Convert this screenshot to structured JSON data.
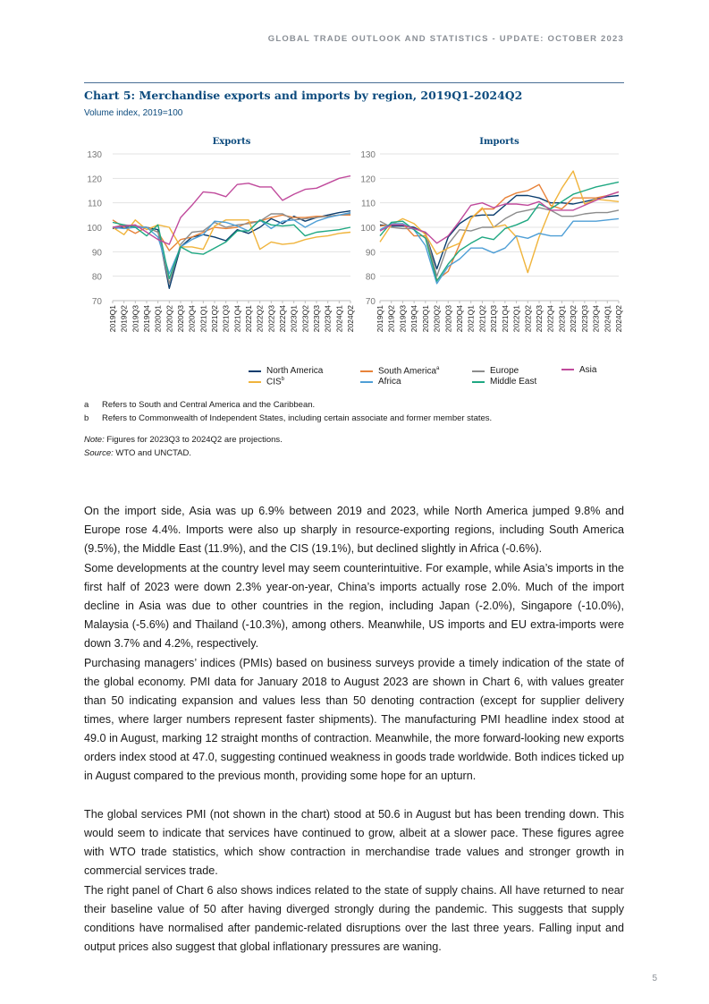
{
  "header": "GLOBAL TRADE OUTLOOK AND STATISTICS - UPDATE: OCTOBER 2023",
  "chart_title": "Chart 5: Merchandise exports and imports by region, 2019Q1-2024Q2",
  "chart_subtitle": "Volume index, 2019=100",
  "chart_data": [
    {
      "type": "line",
      "title": "Exports",
      "ylim": [
        70,
        130
      ],
      "yticks": [
        70,
        80,
        90,
        100,
        110,
        120,
        130
      ],
      "grid": true,
      "x": [
        "2019Q1",
        "2019Q2",
        "2019Q3",
        "2019Q4",
        "2020Q1",
        "2020Q2",
        "2020Q3",
        "2020Q4",
        "2021Q1",
        "2021Q2",
        "2021Q3",
        "2021Q4",
        "2022Q1",
        "2022Q2",
        "2022Q3",
        "2022Q4",
        "2023Q1",
        "2023Q2",
        "2023Q3",
        "2023Q4",
        "2024Q1",
        "2024Q2"
      ],
      "series": [
        {
          "name": "North America",
          "color": "#0b3d6e",
          "values": [
            99.5,
            100,
            100,
            100,
            99,
            75,
            92,
            96,
            97,
            96,
            94.5,
            99,
            97.5,
            100,
            103.5,
            101.5,
            104.5,
            102.5,
            104,
            105,
            106,
            106.7
          ]
        },
        {
          "name": "South America",
          "color": "#e8833a",
          "values": [
            103,
            100,
            97.5,
            100,
            98,
            90.5,
            95,
            96,
            98,
            100,
            99.5,
            100,
            102,
            102.5,
            104,
            105,
            104,
            104,
            104.5,
            104.5,
            105,
            105
          ]
        },
        {
          "name": "Europe",
          "color": "#8c8c8c",
          "values": [
            100,
            101,
            100.5,
            100,
            98,
            77,
            93,
            98,
            98.5,
            102,
            100,
            101,
            101.5,
            102.5,
            105.5,
            105.5,
            103,
            103.5,
            104,
            104.5,
            105,
            105.5
          ]
        },
        {
          "name": "CIS",
          "color": "#f0b43c",
          "values": [
            100,
            97,
            103,
            99,
            101,
            100,
            92,
            92,
            91,
            100.5,
            103,
            103,
            103,
            91,
            94,
            93,
            93.5,
            95,
            96,
            96.5,
            97.5,
            98
          ]
        },
        {
          "name": "Africa",
          "color": "#4f9fd6",
          "values": [
            100,
            99.5,
            100,
            100,
            96,
            81,
            92,
            95,
            97,
            102.5,
            102,
            100.5,
            98.5,
            103,
            99.5,
            102.5,
            103,
            100,
            102.5,
            104,
            105,
            106
          ]
        },
        {
          "name": "Middle East",
          "color": "#1fa882",
          "values": [
            102,
            101,
            100,
            96.5,
            101,
            79,
            92,
            89.5,
            89,
            91.5,
            94,
            98.5,
            98.5,
            103,
            101,
            100.5,
            101,
            96.5,
            98,
            98.5,
            99,
            100
          ]
        },
        {
          "name": "Asia",
          "color": "#c04a9c",
          "values": [
            100,
            100.5,
            101,
            98,
            95,
            93,
            104,
            109,
            114.5,
            114,
            112.5,
            117.5,
            118,
            116.5,
            116.5,
            111,
            113.5,
            115.5,
            116,
            118,
            120,
            121
          ]
        }
      ]
    },
    {
      "type": "line",
      "title": "Imports",
      "ylim": [
        70,
        130
      ],
      "yticks": [
        70,
        80,
        90,
        100,
        110,
        120,
        130
      ],
      "grid": true,
      "x": [
        "2019Q1",
        "2019Q2",
        "2019Q3",
        "2019Q4",
        "2020Q1",
        "2020Q2",
        "2020Q3",
        "2020Q4",
        "2021Q1",
        "2021Q2",
        "2021Q3",
        "2021Q4",
        "2022Q1",
        "2022Q2",
        "2022Q3",
        "2022Q4",
        "2023Q1",
        "2023Q2",
        "2023Q3",
        "2023Q4",
        "2024Q1",
        "2024Q2"
      ],
      "series": [
        {
          "name": "North America",
          "color": "#0b3d6e",
          "values": [
            101,
            100.5,
            100.5,
            100,
            97.5,
            83,
            96,
            101.5,
            104.5,
            105,
            105,
            109,
            113,
            113,
            112,
            110,
            110,
            109.5,
            110.5,
            111.5,
            112.5,
            113
          ]
        },
        {
          "name": "South America",
          "color": "#e8833a",
          "values": [
            100.5,
            101,
            101.5,
            96.5,
            96.5,
            78.5,
            82,
            93,
            103.5,
            107.5,
            107.5,
            112,
            114,
            115,
            117.5,
            109,
            107.5,
            112,
            112,
            112,
            113,
            114.5
          ]
        },
        {
          "name": "Europe",
          "color": "#8c8c8c",
          "values": [
            102.5,
            100,
            99.5,
            99.5,
            98,
            80,
            93,
            99,
            98.5,
            100,
            100,
            103.5,
            106,
            107,
            108,
            107,
            104.5,
            104.5,
            105.5,
            106,
            106,
            107
          ]
        },
        {
          "name": "CIS",
          "color": "#f0b43c",
          "values": [
            94,
            101,
            103.5,
            101.5,
            97,
            89,
            91.5,
            93.5,
            103.5,
            108,
            100,
            101,
            96,
            81.5,
            96,
            107.5,
            116,
            123,
            109.5,
            111.5,
            111,
            110.5
          ]
        },
        {
          "name": "Africa",
          "color": "#4f9fd6",
          "values": [
            99,
            101.5,
            101.5,
            99,
            92.5,
            77,
            84,
            87,
            91.5,
            91.5,
            89.5,
            91.5,
            96.5,
            95.5,
            97.5,
            96.5,
            96.5,
            102.5,
            102.5,
            102.5,
            103,
            103.5
          ]
        },
        {
          "name": "Middle East",
          "color": "#1fa882",
          "values": [
            96.5,
            102,
            102.5,
            99,
            95.5,
            78,
            85,
            90.5,
            93.5,
            96,
            95,
            99.5,
            101,
            103,
            109.5,
            107.5,
            110.5,
            113.5,
            115,
            116.5,
            117.5,
            118.5
          ]
        },
        {
          "name": "Asia",
          "color": "#c04a9c",
          "values": [
            98.5,
            101,
            101,
            99.5,
            98,
            93.5,
            96.5,
            102.5,
            109,
            110,
            108,
            109.5,
            109.5,
            109,
            110.5,
            107,
            107,
            107,
            109,
            111,
            113,
            114.5
          ]
        }
      ]
    }
  ],
  "legend": [
    {
      "label": "North America",
      "sup": "",
      "color": "#0b3d6e"
    },
    {
      "label": "South America",
      "sup": "a",
      "color": "#e8833a"
    },
    {
      "label": "Europe",
      "sup": "",
      "color": "#8c8c8c"
    },
    {
      "label": "Asia",
      "sup": "",
      "color": "#c04a9c"
    },
    {
      "label": "CIS",
      "sup": "b",
      "color": "#f0b43c"
    },
    {
      "label": "Africa",
      "sup": "",
      "color": "#4f9fd6"
    },
    {
      "label": "Middle East",
      "sup": "",
      "color": "#1fa882"
    }
  ],
  "footnotes": [
    {
      "key": "a",
      "text": "Refers to South and Central America and the Caribbean."
    },
    {
      "key": "b",
      "text": "Refers to Commonwealth of Independent States, including certain associate and former member states."
    }
  ],
  "note_label": "Note:",
  "note": " Figures for 2023Q3 to 2024Q2 are projections.",
  "source_label": "Source:",
  "source": " WTO and UNCTAD.",
  "paragraphs": [
    "On the import side, Asia was up 6.9% between 2019 and 2023, while North America jumped 9.8% and Europe rose 4.4%. Imports were also up sharply in resource-exporting regions, including South America (9.5%), the Middle East (11.9%), and the CIS (19.1%), but declined slightly in Africa (-0.6%).",
    "Some developments at the country level may seem counterintuitive. For example, while Asia’s imports in the first half of 2023 were down 2.3% year-on-year, China’s imports actually rose 2.0%. Much of the import decline in Asia was due to other countries in the region, including Japan (-2.0%), Singapore (-10.0%), Malaysia (-5.6%) and Thailand (-10.3%), among others. Meanwhile, US imports and EU extra-imports were down 3.7% and 4.2%, respectively.",
    "Purchasing managers’ indices (PMIs) based on business surveys provide a timely indication of the state of the global economy. PMI data for January 2018 to August 2023 are shown in Chart 6, with values greater than 50 indicating expansion and values less than 50 denoting contraction (except for supplier delivery times, where larger numbers represent faster shipments). The manufacturing PMI headline index stood at 49.0 in August, marking 12 straight months of contraction. Meanwhile, the more forward-looking new exports orders index stood at 47.0, suggesting continued weakness in goods trade worldwide. Both indices ticked up in August compared to the previous month, providing some hope for an upturn.",
    "The global services PMI (not shown in the chart) stood at 50.6 in August but has been trending down. This would seem to indicate that services have continued to grow, albeit at a slower pace. These figures agree with WTO trade statistics, which show contraction in merchandise trade values and stronger growth in commercial services trade.",
    "The right panel of Chart 6 also shows indices related to the state of supply chains. All have returned to near their baseline value of 50 after having diverged strongly during the pandemic. This suggests that supply conditions have normalised after pandemic-related disruptions over the last three years. Falling input and output prices also suggest that global inflationary pressures are waning."
  ],
  "page_number": "5"
}
